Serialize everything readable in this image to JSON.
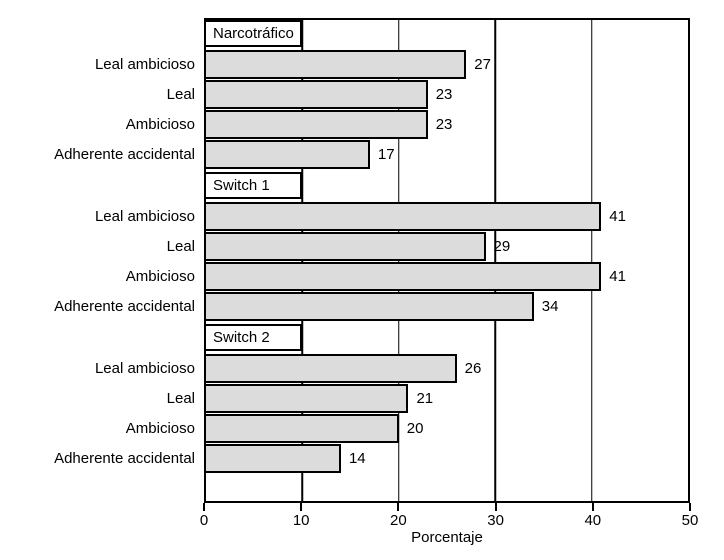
{
  "chart_data": {
    "type": "bar",
    "orientation": "horizontal",
    "xlabel": "Porcentaje",
    "xlim": [
      0,
      50
    ],
    "xticks": [
      0,
      10,
      20,
      30,
      40,
      50
    ],
    "grid": true,
    "legend": false,
    "categories": [
      "Leal ambicioso",
      "Leal",
      "Ambicioso",
      "Adherente accidental"
    ],
    "groups": [
      {
        "name": "Narcotráfico",
        "values": [
          27,
          23,
          23,
          17
        ]
      },
      {
        "name": "Switch 1",
        "values": [
          41,
          29,
          41,
          34
        ]
      },
      {
        "name": "Switch 2",
        "values": [
          26,
          21,
          20,
          14
        ]
      }
    ],
    "colors": {
      "bar_fill": "#dcdcdc",
      "bar_border": "#000000",
      "axis": "#000000",
      "background": "#ffffff"
    }
  }
}
